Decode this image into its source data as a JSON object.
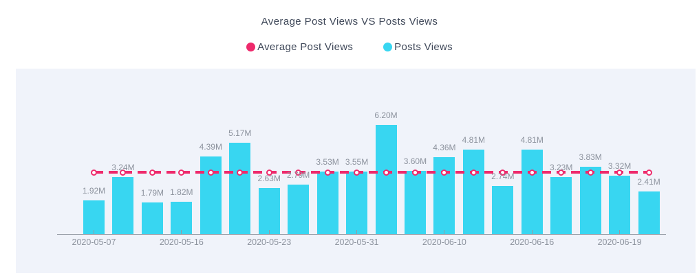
{
  "header": {
    "title": "Average Post Views VS Posts Views"
  },
  "legend": {
    "items": [
      {
        "label": "Average Post Views",
        "color": "#ee2a6c",
        "marker": "circle"
      },
      {
        "label": "Posts Views",
        "color": "#38d6f1",
        "marker": "circle"
      }
    ]
  },
  "chart_data": {
    "type": "bar",
    "title": "Average Post Views VS Posts Views",
    "unit": "M",
    "legend_position": "top",
    "grid": false,
    "ylim": [
      0,
      6.5
    ],
    "series": [
      {
        "name": "Posts Views",
        "type": "bar",
        "color": "#38d6f1",
        "values": [
          1.92,
          3.24,
          1.79,
          1.82,
          4.39,
          5.17,
          2.63,
          2.79,
          3.53,
          3.55,
          6.2,
          3.6,
          4.36,
          4.81,
          2.74,
          4.81,
          3.23,
          3.83,
          3.32,
          2.41
        ],
        "value_labels": [
          "1.92M",
          "3.24M",
          "1.79M",
          "1.82M",
          "4.39M",
          "5.17M",
          "2.63M",
          "2.79M",
          "3.53M",
          "3.55M",
          "6.20M",
          "3.60M",
          "4.36M",
          "4.81M",
          "2.74M",
          "4.81M",
          "3.23M",
          "3.83M",
          "3.32M",
          "2.41M"
        ]
      },
      {
        "name": "Average Post Views",
        "type": "line",
        "style": "dashed",
        "color": "#ee2a6c",
        "value": 3.51,
        "note": "horizontal dashed line at the mean of Posts Views, circle markers at each bar center"
      }
    ],
    "x_ticks": [
      {
        "bar_index": 0,
        "label": "2020-05-07"
      },
      {
        "bar_index": 3,
        "label": "2020-05-16"
      },
      {
        "bar_index": 6,
        "label": "2020-05-23"
      },
      {
        "bar_index": 9,
        "label": "2020-05-31"
      },
      {
        "bar_index": 12,
        "label": "2020-06-10"
      },
      {
        "bar_index": 15,
        "label": "2020-06-16"
      },
      {
        "bar_index": 18,
        "label": "2020-06-19"
      }
    ]
  },
  "colors": {
    "page_background": "#ffffff",
    "panel_background": "#f0f3fa",
    "bar": "#38d6f1",
    "average_line": "#ee2a6c",
    "label_text": "#8d939e",
    "axis": "#949aa3",
    "title_text": "#3f4859"
  }
}
